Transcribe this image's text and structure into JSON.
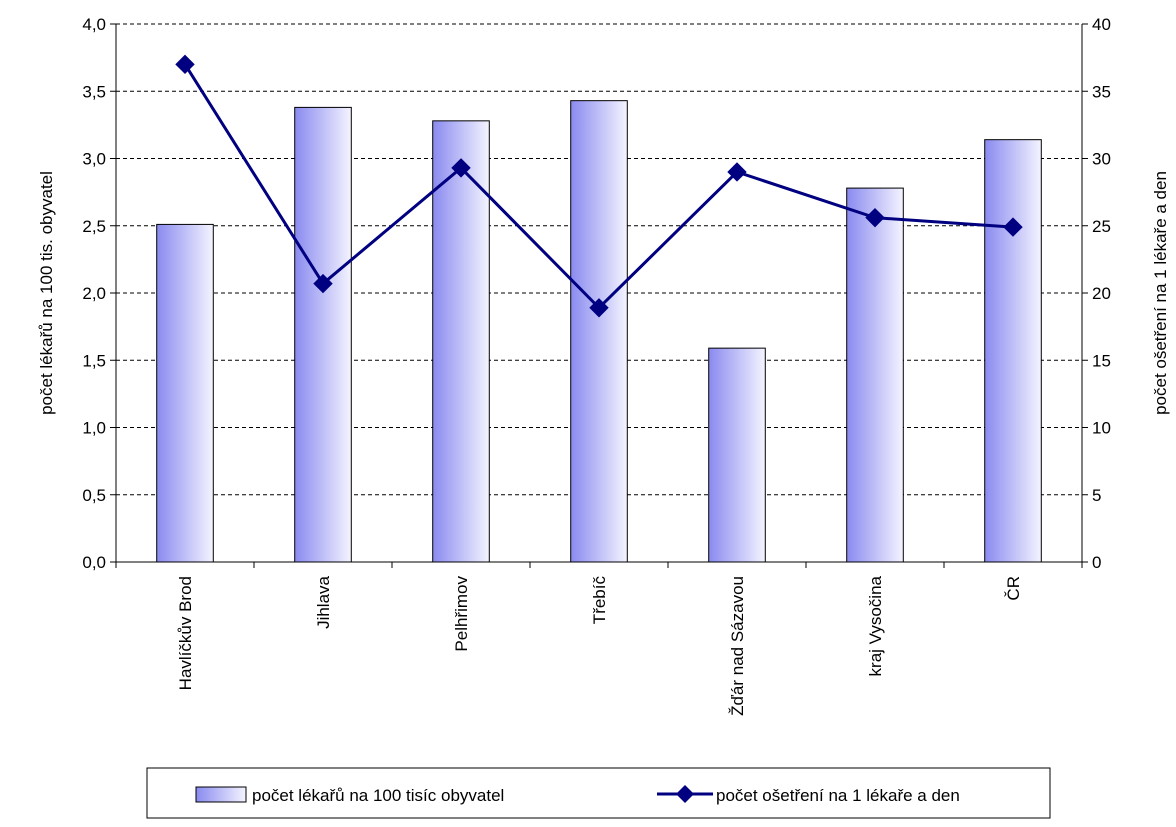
{
  "chart_data": {
    "type": "bar",
    "categories": [
      "Havlíčkův Brod",
      "Jihlava",
      "Pelhřimov",
      "Třebíč",
      "Žďár nad Sázavou",
      "kraj Vysočina",
      "ČR"
    ],
    "series": [
      {
        "name": "počet lékařů na 100 tisíc obyvatel",
        "type": "bar",
        "axis": "left",
        "values": [
          2.51,
          3.38,
          3.28,
          3.43,
          1.59,
          2.78,
          3.14
        ]
      },
      {
        "name": "počet ošetření na 1 lékaře a den",
        "type": "line",
        "axis": "right",
        "values": [
          37.0,
          20.7,
          29.3,
          18.9,
          29.0,
          25.6,
          24.9
        ]
      }
    ],
    "ylabel": "počet lékařů na 100 tis. obyvatel",
    "y2label": "počet ošetření na 1 lékaře a den",
    "ylim": [
      0,
      4
    ],
    "y2lim": [
      0,
      40
    ],
    "yticks": [
      "0,0",
      "0,5",
      "1,0",
      "1,5",
      "2,0",
      "2,5",
      "3,0",
      "3,5",
      "4,0"
    ],
    "y2ticks": [
      "0",
      "5",
      "10",
      "15",
      "20",
      "25",
      "30",
      "35",
      "40"
    ],
    "grid": true,
    "legend_position": "bottom",
    "colors": {
      "bar_dark": "#8a8af0",
      "bar_light": "#f4f4ff",
      "line": "#000080",
      "grid": "#000000"
    }
  }
}
